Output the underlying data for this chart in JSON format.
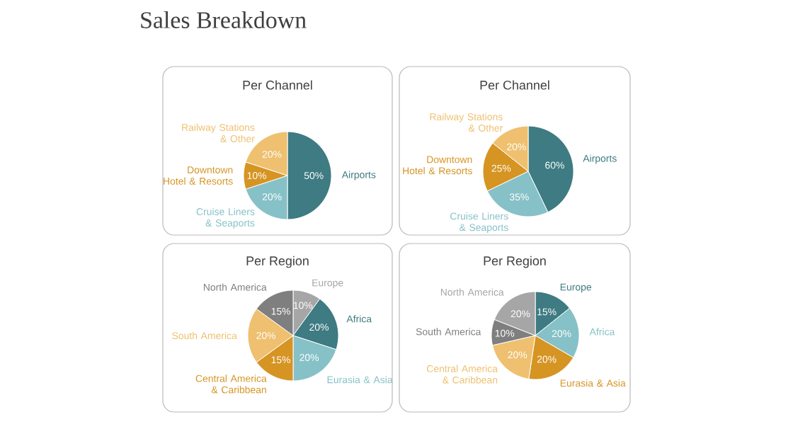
{
  "chart_data": [
    {
      "type": "pie",
      "title": "Per Channel",
      "annotations": [
        "Sales Breakdown"
      ],
      "categories": [
        "Airports",
        "Cruise Liners & Seaports",
        "Downtown Hotel & Resorts",
        "Railway Stations & Other"
      ],
      "values": [
        50,
        20,
        10,
        20
      ],
      "value_labels": [
        "50%",
        "20%",
        "10%",
        "20%"
      ],
      "colors": [
        "#3e7b82",
        "#86c1c7",
        "#d69423",
        "#eec06f"
      ]
    },
    {
      "type": "pie",
      "title": "Per Channel",
      "categories": [
        "Airports",
        "Cruise Liners & Seaports",
        "Downtown Hotel & Resorts",
        "Railway Stations & Other"
      ],
      "values": [
        60,
        35,
        25,
        20
      ],
      "value_labels": [
        "60%",
        "35%",
        "25%",
        "20%"
      ],
      "colors": [
        "#3e7b82",
        "#86c1c7",
        "#d69423",
        "#eec06f"
      ]
    },
    {
      "type": "pie",
      "title": "Per Region",
      "categories": [
        "Europe",
        "Africa",
        "Eurasia & Asia",
        "Central America & Caribbean",
        "South America",
        "North America"
      ],
      "values": [
        10,
        20,
        20,
        15,
        20,
        15
      ],
      "value_labels": [
        "10%",
        "20%",
        "20%",
        "15%",
        "20%",
        "15%"
      ],
      "colors": [
        "#a6a6a6",
        "#3e7b82",
        "#86c1c7",
        "#d69423",
        "#eec06f",
        "#7f7f7f"
      ]
    },
    {
      "type": "pie",
      "title": "Per Region",
      "categories": [
        "Europe",
        "Africa",
        "Eurasia & Asia",
        "Central America & Caribbean",
        "South America",
        "North America"
      ],
      "values": [
        15,
        20,
        20,
        20,
        10,
        20
      ],
      "value_labels": [
        "15%",
        "20%",
        "20%",
        "20%",
        "10%",
        "20%"
      ],
      "colors": [
        "#3e7b82",
        "#86c1c7",
        "#d69423",
        "#eec06f",
        "#7f7f7f",
        "#a6a6a6"
      ]
    }
  ]
}
